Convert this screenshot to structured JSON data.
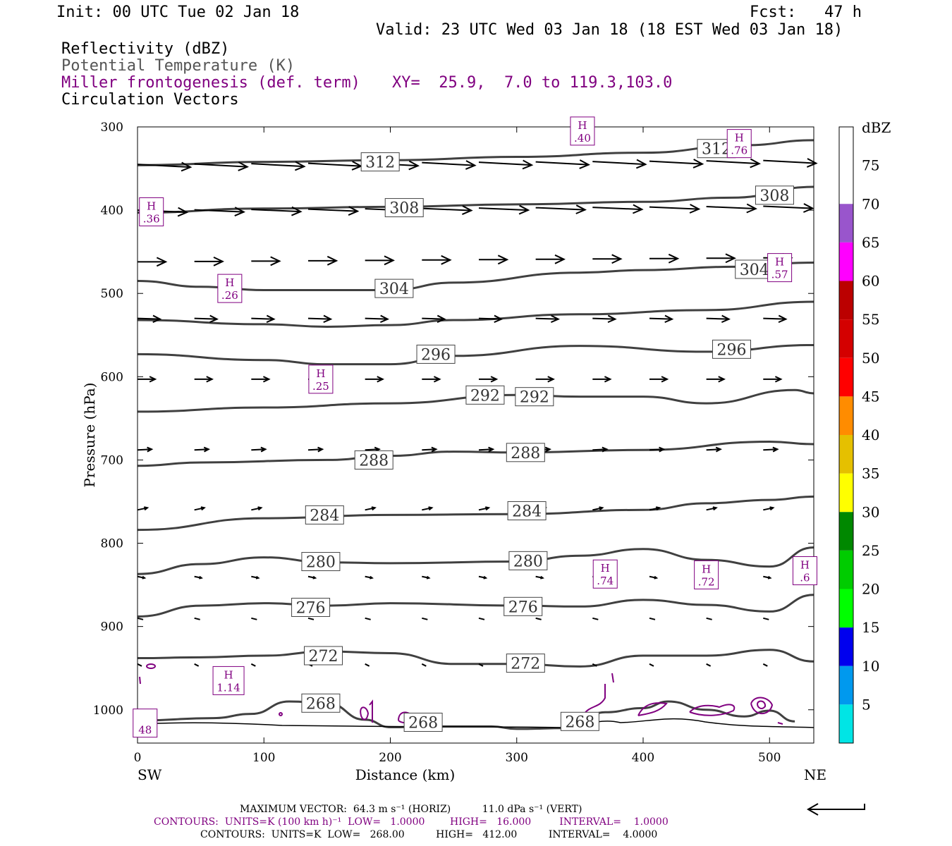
{
  "header": {
    "init": "Init: 00 UTC Tue 02 Jan 18",
    "fcst": "Fcst:   47 h",
    "valid": "Valid: 23 UTC Wed 03 Jan 18 (18 EST Wed 03 Jan 18)",
    "field1": "Reflectivity (dBZ)",
    "field2": "Potential Temperature (K)",
    "field3": "Miller frontogenesis (def. term)",
    "xy": "XY=  25.9,  7.0 to 119.3,103.0",
    "field4": "Circulation Vectors"
  },
  "colors": {
    "theta": "#404040",
    "frontogenesis": "#800080",
    "vectors": "#000000",
    "dbz_scale": [
      "#00e5e5",
      "#0099ee",
      "#0000ee",
      "#00ff00",
      "#00cc00",
      "#008800",
      "#ffff00",
      "#e5c000",
      "#ff8c00",
      "#ff0000",
      "#d40000",
      "#bb0000",
      "#ff00ff",
      "#9955cc",
      "#ffffff"
    ]
  },
  "chart_data": {
    "type": "cross-section",
    "xlabel": "Distance (km)",
    "ylabel": "Pressure (hPa)",
    "xlim": [
      0,
      535
    ],
    "ylim": [
      1040,
      300
    ],
    "x_ticks": [
      0,
      100,
      200,
      300,
      400,
      500
    ],
    "y_ticks": [
      300,
      400,
      500,
      600,
      700,
      800,
      900,
      1000
    ],
    "x_end_labels": {
      "left": "SW",
      "right": "NE"
    },
    "grid": false,
    "colorbar": {
      "title": "dBZ",
      "ticks": [
        "5",
        "10",
        "15",
        "20",
        "25",
        "30",
        "35",
        "40",
        "45",
        "50",
        "55",
        "60",
        "65",
        "70",
        "75"
      ]
    },
    "theta_contours": [
      {
        "value": 312,
        "x": [
          0,
          100,
          200,
          300,
          400,
          480,
          535
        ],
        "p": [
          346,
          342,
          340,
          336,
          331,
          322,
          316
        ]
      },
      {
        "value": 308,
        "x": [
          0,
          100,
          200,
          300,
          400,
          470,
          535
        ],
        "p": [
          403,
          398,
          396,
          393,
          390,
          385,
          372
        ]
      },
      {
        "value": 304,
        "x": [
          0,
          50,
          100,
          200,
          250,
          350,
          400,
          470,
          535
        ],
        "p": [
          485,
          492,
          496,
          496,
          487,
          475,
          472,
          468,
          463
        ]
      },
      {
        "value": 300,
        "x": [
          0,
          100,
          150,
          200,
          250,
          350,
          450,
          535
        ],
        "p": [
          532,
          537,
          540,
          538,
          532,
          525,
          520,
          510
        ]
      },
      {
        "value": 296,
        "x": [
          0,
          100,
          150,
          200,
          250,
          350,
          450,
          535
        ],
        "p": [
          573,
          580,
          585,
          585,
          575,
          563,
          570,
          562
        ]
      },
      {
        "value": 292,
        "x": [
          0,
          100,
          200,
          300,
          350,
          400,
          450,
          520,
          535
        ],
        "p": [
          642,
          637,
          632,
          622,
          624,
          624,
          632,
          616,
          620
        ]
      },
      {
        "value": 288,
        "x": [
          0,
          50,
          150,
          200,
          250,
          300,
          400,
          500,
          535
        ],
        "p": [
          707,
          703,
          700,
          695,
          690,
          691,
          688,
          678,
          681
        ]
      },
      {
        "value": 284,
        "x": [
          0,
          100,
          200,
          300,
          400,
          450,
          500,
          535
        ],
        "p": [
          784,
          770,
          766,
          765,
          760,
          752,
          748,
          744
        ]
      },
      {
        "value": 280,
        "x": [
          0,
          50,
          100,
          150,
          200,
          300,
          350,
          400,
          450,
          500,
          535
        ],
        "p": [
          837,
          825,
          817,
          823,
          824,
          822,
          815,
          807,
          820,
          828,
          805
        ]
      },
      {
        "value": 276,
        "x": [
          0,
          50,
          100,
          150,
          200,
          300,
          350,
          400,
          450,
          500,
          535
        ],
        "p": [
          888,
          875,
          872,
          875,
          872,
          875,
          876,
          868,
          874,
          882,
          862
        ]
      },
      {
        "value": 272,
        "x": [
          0,
          50,
          100,
          150,
          200,
          250,
          300,
          350,
          400,
          450,
          500,
          535
        ],
        "p": [
          938,
          937,
          935,
          930,
          932,
          945,
          945,
          948,
          935,
          935,
          928,
          942
        ]
      },
      {
        "value": 268,
        "x": [
          0,
          60,
          90,
          120,
          150,
          180,
          200,
          230,
          280,
          300,
          340,
          370,
          400,
          420,
          450,
          480,
          500,
          520
        ],
        "p": [
          1013,
          1010,
          1005,
          990,
          992,
          1012,
          1021,
          1020,
          1020,
          1023,
          1022,
          1003,
          998,
          990,
          1000,
          1008,
          1001,
          1014
        ]
      }
    ],
    "contour_labels": [
      {
        "text": "312",
        "x": 192,
        "p": 342
      },
      {
        "text": "312",
        "x": 458,
        "p": 326
      },
      {
        "text": "308",
        "x": 211,
        "p": 397
      },
      {
        "text": "308",
        "x": 504,
        "p": 382
      },
      {
        "text": "304",
        "x": 203,
        "p": 494
      },
      {
        "text": "304",
        "x": 488,
        "p": 471
      },
      {
        "text": "296",
        "x": 236,
        "p": 573
      },
      {
        "text": "296",
        "x": 470,
        "p": 567
      },
      {
        "text": "292",
        "x": 275,
        "p": 622
      },
      {
        "text": "292",
        "x": 314,
        "p": 624
      },
      {
        "text": "288",
        "x": 187,
        "p": 700
      },
      {
        "text": "288",
        "x": 307,
        "p": 691
      },
      {
        "text": "284",
        "x": 148,
        "p": 766
      },
      {
        "text": "284",
        "x": 308,
        "p": 761
      },
      {
        "text": "280",
        "x": 145,
        "p": 822
      },
      {
        "text": "280",
        "x": 309,
        "p": 821
      },
      {
        "text": "276",
        "x": 137,
        "p": 877
      },
      {
        "text": "276",
        "x": 305,
        "p": 876
      },
      {
        "text": "272",
        "x": 147,
        "p": 935
      },
      {
        "text": "272",
        "x": 307,
        "p": 944
      },
      {
        "text": "268",
        "x": 145,
        "p": 992
      },
      {
        "text": "268",
        "x": 226,
        "p": 1015
      },
      {
        "text": "268",
        "x": 350,
        "p": 1014
      }
    ],
    "frontogenesis_maxima": [
      {
        "label": "H",
        "value": ".40",
        "x": 352,
        "p": 305
      },
      {
        "label": "H",
        "value": ".76",
        "x": 476,
        "p": 320
      },
      {
        "label": "H",
        "value": ".36",
        "x": 11,
        "p": 402
      },
      {
        "label": "H",
        "value": ".57",
        "x": 508,
        "p": 469
      },
      {
        "label": "H",
        "value": ".26",
        "x": 73,
        "p": 494
      },
      {
        "label": "H",
        "value": ".25",
        "x": 145,
        "p": 603
      },
      {
        "label": "H",
        "value": ".74",
        "x": 370,
        "p": 837
      },
      {
        "label": "H",
        "value": ".72",
        "x": 450,
        "p": 838
      },
      {
        "label": "H",
        "value": ".6",
        "x": 528,
        "p": 833
      },
      {
        "label": "H",
        "value": "1.14",
        "x": 72,
        "p": 965
      },
      {
        "label": "",
        "value": "48",
        "x": 6,
        "p": 1016
      }
    ]
  },
  "footer": {
    "vector_line": "MAXIMUM VECTOR:  64.3 m s⁻¹ (HORIZ)          11.0 dPa s⁻¹ (VERT)",
    "contours1": "CONTOURS:  UNITS=K (100 km h)⁻¹  LOW=   1.0000        HIGH=   16.000         INTERVAL=    1.0000",
    "contours2": "CONTOURS:  UNITS=K  LOW=   268.00          HIGH=   412.00          INTERVAL=    4.0000"
  }
}
